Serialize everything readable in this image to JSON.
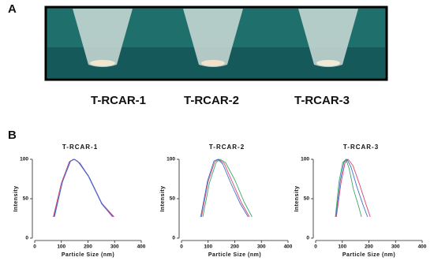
{
  "panel_a": {
    "label": "A",
    "tubes": [
      "T-RCAR-1",
      "T-RCAR-2",
      "T-RCAR-3"
    ]
  },
  "panel_b": {
    "label": "B"
  },
  "chart_data": [
    {
      "type": "line",
      "title": "T-RCAR-1",
      "x_label": "Particle Size (nm)",
      "y_label": "Intensity",
      "xlim": [
        0,
        400
      ],
      "xticks": [
        0,
        100,
        200,
        300,
        400
      ],
      "ylim": [
        0,
        100
      ],
      "yticks": [
        0,
        50,
        100
      ],
      "series": [
        {
          "color": "#d9436a",
          "x": [
            70,
            100,
            130,
            145,
            160,
            200,
            250,
            298
          ],
          "values": [
            27,
            70,
            97,
            100,
            98,
            80,
            45,
            27
          ]
        },
        {
          "color": "#7a4fb5",
          "x": [
            72,
            105,
            135,
            150,
            170,
            205,
            255,
            292
          ],
          "values": [
            27,
            72,
            98,
            100,
            95,
            77,
            42,
            27
          ]
        },
        {
          "color": "#3f6fd0",
          "x": [
            74,
            104,
            132,
            148,
            165,
            202,
            252,
            295
          ],
          "values": [
            27,
            71,
            97,
            100,
            96,
            78,
            43,
            27
          ]
        }
      ]
    },
    {
      "type": "line",
      "title": "T-RCAR-2",
      "x_label": "Particle Size (nm)",
      "y_label": "Intensity",
      "xlim": [
        0,
        400
      ],
      "xticks": [
        0,
        100,
        200,
        300,
        400
      ],
      "ylim": [
        0,
        100
      ],
      "yticks": [
        0,
        50,
        100
      ],
      "series": [
        {
          "color": "#d9436a",
          "x": [
            75,
            100,
            125,
            140,
            160,
            190,
            225,
            255
          ],
          "values": [
            27,
            72,
            97,
            100,
            95,
            72,
            45,
            27
          ]
        },
        {
          "color": "#3aa96b",
          "x": [
            80,
            105,
            130,
            145,
            165,
            200,
            235,
            265
          ],
          "values": [
            27,
            70,
            96,
            100,
            96,
            74,
            46,
            27
          ]
        },
        {
          "color": "#3f6fd0",
          "x": [
            72,
            98,
            122,
            137,
            155,
            185,
            220,
            250
          ],
          "values": [
            27,
            73,
            98,
            100,
            94,
            70,
            44,
            27
          ]
        }
      ]
    },
    {
      "type": "line",
      "title": "T-RCAR-3",
      "x_label": "Particle Size (nm)",
      "y_label": "Intensity",
      "xlim": [
        0,
        400
      ],
      "xticks": [
        0,
        100,
        200,
        300,
        400
      ],
      "ylim": [
        0,
        100
      ],
      "yticks": [
        0,
        50,
        100
      ],
      "series": [
        {
          "color": "#d9436a",
          "x": [
            78,
            95,
            110,
            122,
            140,
            165,
            190,
            205
          ],
          "values": [
            27,
            70,
            95,
            100,
            92,
            68,
            42,
            27
          ]
        },
        {
          "color": "#3f6fd0",
          "x": [
            76,
            92,
            106,
            118,
            133,
            155,
            178,
            195
          ],
          "values": [
            27,
            72,
            96,
            100,
            90,
            65,
            42,
            27
          ]
        },
        {
          "color": "#3aa96b",
          "x": [
            74,
            88,
            102,
            114,
            126,
            142,
            160,
            172
          ],
          "values": [
            27,
            72,
            96,
            100,
            88,
            62,
            42,
            27
          ]
        }
      ]
    }
  ]
}
